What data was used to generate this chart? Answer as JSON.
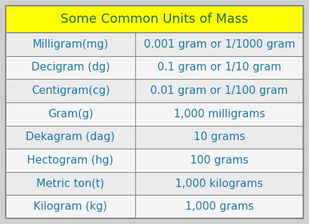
{
  "title": "Some Common Units of Mass",
  "title_bg": "#FFFF00",
  "title_color": "#1a6b1a",
  "header_fontsize": 13,
  "row_fontsize": 11,
  "text_color": "#1a7ab5",
  "row_bg_light": "#ebebeb",
  "row_bg_white": "#f5f5f5",
  "border_color": "#888888",
  "outer_bg": "#d0d0d0",
  "col_split": 0.435,
  "rows": [
    [
      "Milligram(mg)",
      "0.001 gram or 1/1000 gram"
    ],
    [
      "Decigram (dg)",
      "0.1 gram or 1/10 gram"
    ],
    [
      "Centigram(cg)",
      "0.01 gram or 1/100 gram"
    ],
    [
      "Gram(g)",
      "1,000 milligrams"
    ],
    [
      "Dekagram (dag)",
      "10 grams"
    ],
    [
      "Hectogram (hg)",
      "100 grams"
    ],
    [
      "Metric ton(t)",
      "1,000 kilograms"
    ],
    [
      "Kilogram (kg)",
      "1,000 grams"
    ]
  ]
}
